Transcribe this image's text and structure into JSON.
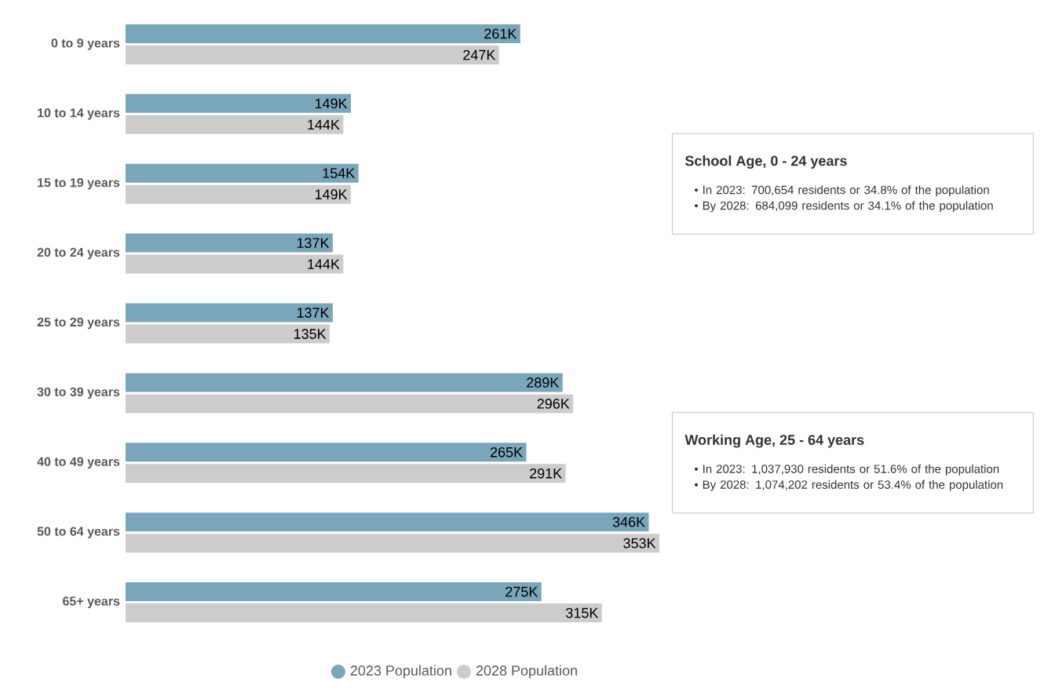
{
  "chart_data": {
    "type": "bar",
    "orientation": "horizontal",
    "categories": [
      "0 to 9 years",
      "10 to 14 years",
      "15 to 19 years",
      "20 to 24 years",
      "25 to 29 years",
      "30 to 39 years",
      "40 to 49 years",
      "50 to 64 years",
      "65+ years"
    ],
    "series": [
      {
        "name": "2023 Population",
        "color": "#7aa6bb",
        "values": [
          261,
          149,
          154,
          137,
          137,
          289,
          265,
          346,
          275
        ],
        "value_labels": [
          "261K",
          "149K",
          "154K",
          "137K",
          "137K",
          "289K",
          "265K",
          "346K",
          "275K"
        ]
      },
      {
        "name": "2028 Population",
        "color": "#cccccc",
        "values": [
          247,
          144,
          149,
          144,
          135,
          296,
          291,
          353,
          315
        ],
        "value_labels": [
          "247K",
          "144K",
          "149K",
          "144K",
          "135K",
          "296K",
          "291K",
          "353K",
          "315K"
        ]
      }
    ],
    "legend": "bottom",
    "annotations": [
      "School Age, 0 - 24 years",
      "• In 2023: 700,654 residents or 34.8% of the population",
      "• By 2028: 684,099 residents or 34.1% of the population",
      "Working Age, 25 - 64 years",
      "• In 2023: 1,037,930 residents or 51.6% of the population",
      "• By 2028: 1,074,202 residents or 53.4% of the population"
    ]
  }
}
